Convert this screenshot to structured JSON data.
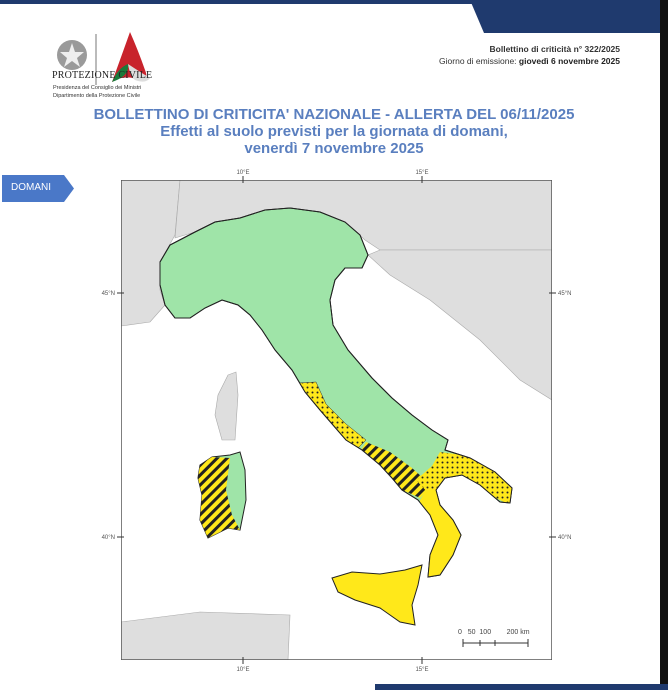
{
  "header": {
    "org_name": "PROTEZIONE CIVILE",
    "org_sub1": "Presidenza del Consiglio dei Ministri",
    "org_sub2": "Dipartimento della Protezione Civile",
    "bulletin_number": "Bollettino di criticità n° 322/2025",
    "emission_label": "Giorno di emissione: ",
    "emission_date": "giovedì 6 novembre 2025"
  },
  "title": {
    "line1": "BOLLETTINO DI CRITICITA' NAZIONALE - ALLERTA DEL 06/11/2025",
    "line2": "Effetti al suolo previsti per la giornata di domani,",
    "line3": "venerdì 7 novembre 2025"
  },
  "tab": {
    "label": "DOMANI"
  },
  "map": {
    "lon_labels": [
      "10°E",
      "15°E"
    ],
    "lat_labels": [
      "45°N",
      "40°N"
    ],
    "scale_label": "0   50  100        200 km",
    "colors": {
      "no_alert": "#9fe4a8",
      "yellow_alert": "#ffe81a",
      "land": "#dedede",
      "brand": "#1f3a6e",
      "title": "#5a7fbf"
    }
  }
}
